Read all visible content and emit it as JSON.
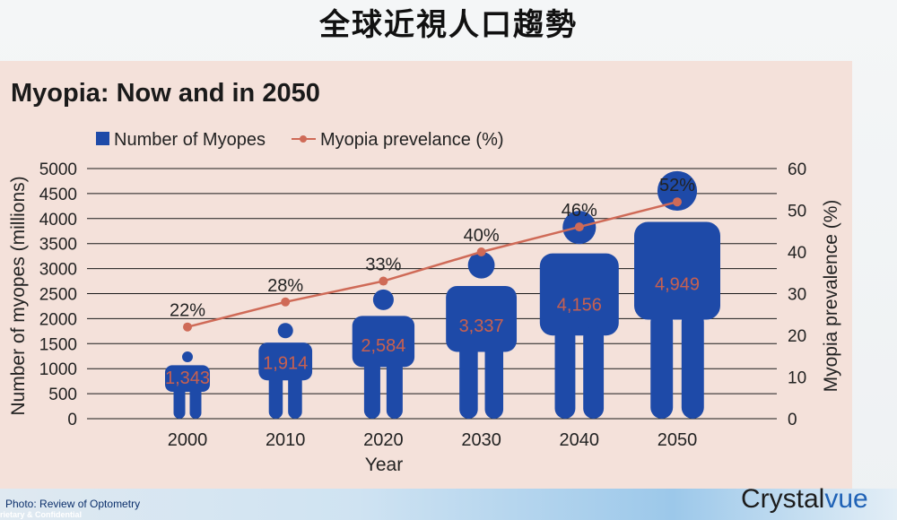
{
  "slide": {
    "title": "全球近視人口趨勢",
    "photo_credit": "Photo: Review of Optometry",
    "confidential": "rietary & Confidential",
    "brand": {
      "part1": "Crystal",
      "part2": "vue"
    }
  },
  "colors": {
    "bar": "#1e4aa8",
    "line": "#cf6a57",
    "panel": "#f4e1da",
    "data_label": "#c8604f"
  },
  "chart_data": {
    "type": "bar",
    "title": "Myopia: Now and in 2050",
    "legend": {
      "placement": "top-left",
      "items": [
        "Number of Myopes",
        "Myopia prevelance (%)"
      ]
    },
    "categories": [
      "2000",
      "2010",
      "2020",
      "2030",
      "2040",
      "2050"
    ],
    "xlabel": "Year",
    "ylabel": "Number of myopes (millions)",
    "y2label": "Myopia prevalence (%)",
    "ylim": [
      0,
      5000
    ],
    "y2lim": [
      0,
      60
    ],
    "yticks": [
      "0",
      "500",
      "1000",
      "1500",
      "2000",
      "2500",
      "3000",
      "3500",
      "4000",
      "4500",
      "5000"
    ],
    "y2ticks": [
      "0",
      "10",
      "20",
      "30",
      "40",
      "50",
      "60"
    ],
    "grid": true,
    "series": [
      {
        "name": "Number of Myopes",
        "kind": "bar",
        "values": [
          1343,
          1914,
          2584,
          3337,
          4156,
          4949
        ],
        "labels": [
          "1,343",
          "1,914",
          "2,584",
          "3,337",
          "4,156",
          "4,949"
        ]
      },
      {
        "name": "Myopia prevelance (%)",
        "kind": "line",
        "axis": "right",
        "values": [
          22,
          28,
          33,
          40,
          46,
          52
        ],
        "labels": [
          "22%",
          "28%",
          "33%",
          "40%",
          "46%",
          "52%"
        ]
      }
    ]
  }
}
